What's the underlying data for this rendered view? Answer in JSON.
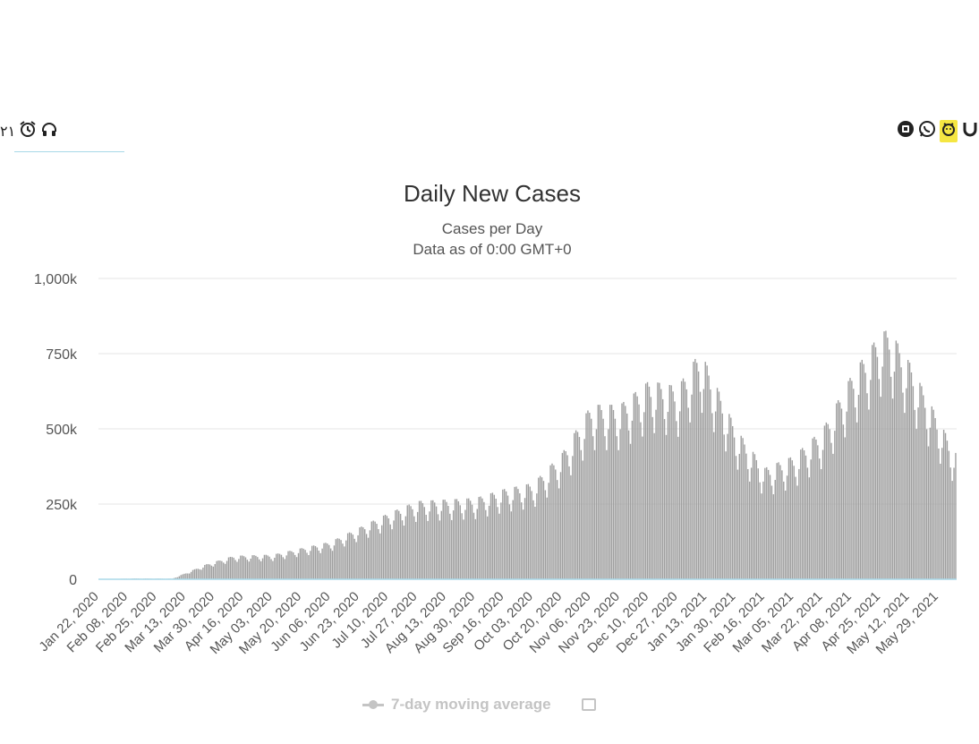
{
  "header": {
    "left_text": "٢١",
    "left_icons": [
      "alarm-clock-icon",
      "headphones-icon"
    ],
    "right_icons": [
      "record-icon",
      "whatsapp-icon",
      "emoji-icon",
      "magnet-icon"
    ]
  },
  "chart_data": {
    "type": "bar",
    "title": "Daily New Cases",
    "subtitle": "Cases per Day",
    "subtitle2": "Data as of 0:00 GMT+0",
    "xlabel": "",
    "ylabel": "",
    "ylim": [
      0,
      1000000
    ],
    "y_ticks": [
      {
        "value": 0,
        "label": "0"
      },
      {
        "value": 250000,
        "label": "250k"
      },
      {
        "value": 500000,
        "label": "500k"
      },
      {
        "value": 750000,
        "label": "750k"
      },
      {
        "value": 1000000,
        "label": "1,000k"
      }
    ],
    "grid": true,
    "date_start": "Jan 22, 2020",
    "date_end": "Jun 08, 2021",
    "x_tick_labels": [
      "Jan 22, 2020",
      "Feb 08, 2020",
      "Feb 25, 2020",
      "Mar 13, 2020",
      "Mar 30, 2020",
      "Apr 16, 2020",
      "May 03, 2020",
      "May 20, 2020",
      "Jun 06, 2020",
      "Jun 23, 2020",
      "Jul 10, 2020",
      "Jul 27, 2020",
      "Aug 13, 2020",
      "Aug 30, 2020",
      "Sep 16, 2020",
      "Oct 03, 2020",
      "Oct 20, 2020",
      "Nov 06, 2020",
      "Nov 23, 2020",
      "Dec 10, 2020",
      "Dec 27, 2020",
      "Jan 13, 2021",
      "Jan 30, 2021",
      "Feb 16, 2021",
      "Mar 05, 2021",
      "Mar 22, 2021",
      "Apr 08, 2021",
      "Apr 25, 2021",
      "May 12, 2021",
      "May 29, 2021"
    ],
    "trend_points": [
      {
        "date": "Jan 22, 2020",
        "value": 500
      },
      {
        "date": "Feb 12, 2020",
        "value": 2500
      },
      {
        "date": "Mar 05, 2020",
        "value": 2000
      },
      {
        "date": "Mar 25, 2020",
        "value": 50000
      },
      {
        "date": "Apr 10, 2020",
        "value": 78000
      },
      {
        "date": "May 03, 2020",
        "value": 82000
      },
      {
        "date": "Jun 06, 2020",
        "value": 125000
      },
      {
        "date": "Jul 10, 2020",
        "value": 220000
      },
      {
        "date": "Jul 27, 2020",
        "value": 260000
      },
      {
        "date": "Aug 30, 2020",
        "value": 270000
      },
      {
        "date": "Sep 16, 2020",
        "value": 300000
      },
      {
        "date": "Oct 03, 2020",
        "value": 320000
      },
      {
        "date": "Oct 20, 2020",
        "value": 420000
      },
      {
        "date": "Nov 06, 2020",
        "value": 580000
      },
      {
        "date": "Nov 23, 2020",
        "value": 580000
      },
      {
        "date": "Dec 10, 2020",
        "value": 660000
      },
      {
        "date": "Dec 27, 2020",
        "value": 640000
      },
      {
        "date": "Jan 09, 2021",
        "value": 760000
      },
      {
        "date": "Jan 30, 2021",
        "value": 500000
      },
      {
        "date": "Feb 16, 2021",
        "value": 370000
      },
      {
        "date": "Mar 05, 2021",
        "value": 410000
      },
      {
        "date": "Mar 22, 2021",
        "value": 500000
      },
      {
        "date": "Apr 08, 2021",
        "value": 680000
      },
      {
        "date": "Apr 25, 2021",
        "value": 820000
      },
      {
        "date": "Apr 30, 2021",
        "value": 830000
      },
      {
        "date": "May 12, 2021",
        "value": 720000
      },
      {
        "date": "May 29, 2021",
        "value": 530000
      },
      {
        "date": "Jun 08, 2021",
        "value": 420000
      }
    ],
    "weekly_pattern": [
      1.0,
      0.97,
      0.92,
      0.82,
      0.74,
      0.86,
      1.0
    ],
    "bar_color": "#9e9e9e",
    "grid_color": "#e6e6e6",
    "axis_color": "#a8d8e8",
    "legend": {
      "position": "bottom",
      "items": [
        "7-day moving average"
      ]
    }
  }
}
